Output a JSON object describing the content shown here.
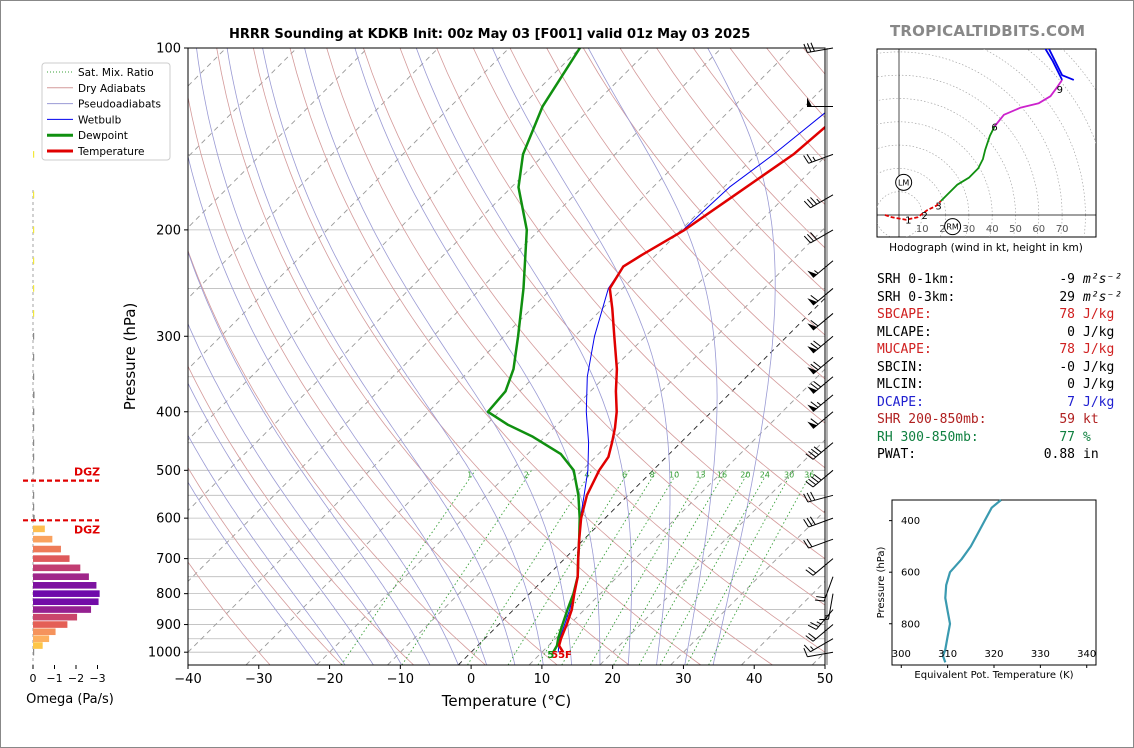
{
  "brand": "TROPICALTIDBITS.COM",
  "title": "HRRR Sounding at KDKB Init: 00z May 03 [F001] valid 01z May 03 2025",
  "colors": {
    "temperature": "#e00000",
    "dewpoint": "#109010",
    "wetbulb": "#0000ee",
    "dry_adiabat": "#d49a9a",
    "moist_adiabat": "#9a9ad4",
    "mixing_ratio": "#3aa03a",
    "isobar": "#bbbbbb",
    "dgz": "#e00000",
    "theta_e": "#3a9ab0",
    "red_text": "#d02020",
    "blue_text": "#2020d0",
    "brown_text": "#b02020",
    "green_text": "#108040"
  },
  "chart_data": [
    {
      "type": "line",
      "name": "skew-t",
      "xlabel": "Temperature (°C)",
      "ylabel": "Pressure (hPa)",
      "xlim": [
        -40,
        50
      ],
      "ylim": [
        1050,
        100
      ],
      "y_scale": "log",
      "x_ticks": [
        -40,
        -30,
        -20,
        -10,
        0,
        10,
        20,
        30,
        40,
        50
      ],
      "x_tick_labels": [
        "−40",
        "−30",
        "−20",
        "−10",
        "0",
        "10",
        "20",
        "30",
        "40",
        "50"
      ],
      "y_ticks": [
        100,
        200,
        300,
        400,
        500,
        600,
        700,
        800,
        900,
        1000
      ],
      "y_tick_labels": [
        "100",
        "200",
        "300",
        "400",
        "500",
        "600",
        "700",
        "800",
        "900",
        "1000"
      ],
      "grid": true,
      "legend_position": "top-left",
      "legend": [
        {
          "label": "Sat. Mix. Ratio",
          "color": "#3aa03a",
          "style": "dotted",
          "width": 1
        },
        {
          "label": "Dry Adiabats",
          "color": "#d49a9a",
          "style": "solid",
          "width": 1
        },
        {
          "label": "Pseudoadiabats",
          "color": "#9a9ad4",
          "style": "solid",
          "width": 1
        },
        {
          "label": "Wetbulb",
          "color": "#0000ee",
          "style": "solid",
          "width": 1
        },
        {
          "label": "Dewpoint",
          "color": "#109010",
          "style": "solid",
          "width": 3
        },
        {
          "label": "Temperature",
          "color": "#e00000",
          "style": "solid",
          "width": 3
        }
      ],
      "mixing_ratio_labels": [
        "1",
        "2",
        "4",
        "6",
        "8",
        "10",
        "13",
        "16",
        "20",
        "24",
        "30",
        "36"
      ],
      "surface_label": "55F",
      "surface_label_dewpoint": "5",
      "series": [
        {
          "name": "Temperature",
          "p": [
            1000,
            975,
            950,
            925,
            900,
            850,
            800,
            750,
            700,
            650,
            600,
            550,
            500,
            475,
            450,
            425,
            400,
            370,
            340,
            300,
            270,
            250,
            230,
            220,
            200,
            175,
            150,
            125,
            100
          ],
          "t": [
            13.0,
            11.5,
            10.8,
            10.2,
            9.6,
            8.2,
            6.3,
            4.4,
            1.9,
            -0.7,
            -3.4,
            -5.8,
            -7.6,
            -8.2,
            -9.7,
            -11.4,
            -13.4,
            -16.4,
            -19.4,
            -24.4,
            -28.6,
            -31.8,
            -33.0,
            -32.0,
            -29.5,
            -27.3,
            -24.8,
            -23.7,
            -22.9
          ]
        },
        {
          "name": "Dewpoint",
          "p": [
            1000,
            975,
            950,
            925,
            900,
            850,
            800,
            750,
            700,
            650,
            600,
            550,
            500,
            470,
            440,
            420,
            400,
            370,
            340,
            300,
            250,
            200,
            170,
            150,
            125,
            100
          ],
          "t": [
            11.6,
            11.2,
            10.4,
            9.7,
            9.0,
            7.6,
            6.2,
            4.4,
            1.9,
            -0.7,
            -3.6,
            -7.0,
            -11.2,
            -15.3,
            -21.7,
            -27.0,
            -31.6,
            -32.0,
            -34.0,
            -38.0,
            -44.0,
            -51.8,
            -59.0,
            -63.0,
            -67.0,
            -70.0
          ]
        },
        {
          "name": "Wetbulb",
          "p": [
            1000,
            950,
            900,
            850,
            800,
            750,
            700,
            650,
            600,
            550,
            500,
            450,
            400,
            350,
            300,
            250,
            230,
            200,
            170,
            150,
            125,
            100
          ],
          "t": [
            12.3,
            10.6,
            9.3,
            7.9,
            6.2,
            4.4,
            1.9,
            -0.7,
            -3.5,
            -6.2,
            -9.2,
            -13.0,
            -17.7,
            -22.5,
            -27.2,
            -32.0,
            -33.0,
            -29.7,
            -29.2,
            -27.6,
            -26.0,
            -24.9
          ]
        }
      ]
    },
    {
      "type": "bar",
      "name": "omega",
      "xlabel": "Omega (Pa/s)",
      "x_ticks": [
        0,
        -1,
        -2,
        -3
      ],
      "x_tick_labels": [
        "0",
        "−1",
        "−2",
        "−3"
      ],
      "dgz_label": "DGZ",
      "dgz_p": [
        520,
        605
      ],
      "p": [
        1000,
        975,
        950,
        925,
        900,
        875,
        850,
        825,
        800,
        775,
        750,
        725,
        700,
        675,
        650,
        625,
        600,
        575,
        550,
        500,
        475,
        450,
        425,
        400,
        375,
        350,
        325,
        300,
        275,
        250,
        225,
        200,
        175,
        150
      ],
      "values": [
        -0.03,
        -0.45,
        -0.75,
        -1.05,
        -1.6,
        -2.05,
        -2.7,
        -3.05,
        -3.1,
        -2.95,
        -2.6,
        -2.2,
        -1.7,
        -1.3,
        -0.9,
        -0.55,
        -0.08,
        -0.02,
        -0.01,
        -0.01,
        -0.01,
        -0.01,
        -0.02,
        -0.06,
        -0.07,
        -0.04,
        -0.02,
        -0.01,
        -0.03,
        -0.04,
        -0.03,
        -0.02,
        -0.02,
        -0.02
      ]
    },
    {
      "type": "line",
      "name": "hodograph",
      "xlabel": "Hodograph (wind in kt, height in km)",
      "x_tick_labels": [
        "10",
        "20",
        "30",
        "40",
        "50",
        "60",
        "70"
      ],
      "x_ticks": [
        10,
        20,
        30,
        40,
        50,
        60,
        70
      ],
      "storm_motion": [
        {
          "label": "LM",
          "u": 2,
          "v": 14
        },
        {
          "label": "RM",
          "u": 23,
          "v": -5
        }
      ],
      "height_labels": [
        {
          "label": "1",
          "u": 4,
          "v": -2
        },
        {
          "label": "2",
          "u": 11,
          "v": 0
        },
        {
          "label": "3",
          "u": 17,
          "v": 4
        },
        {
          "label": "6",
          "u": 41,
          "v": 38
        },
        {
          "label": "9",
          "u": 69,
          "v": 54
        }
      ],
      "segments": [
        {
          "color": "#e00000",
          "u": [
            -6,
            -3,
            3,
            8,
            12,
            16,
            18
          ],
          "v": [
            0,
            -1,
            -2,
            -1,
            2,
            4,
            6
          ]
        },
        {
          "color": "#109010",
          "u": [
            18,
            21,
            25,
            30,
            34,
            36,
            37,
            39,
            41
          ],
          "v": [
            6,
            9,
            13,
            16,
            20,
            24,
            28,
            34,
            38
          ]
        },
        {
          "color": "#cc22cc",
          "u": [
            41,
            45,
            52,
            60,
            65,
            68,
            70
          ],
          "v": [
            38,
            43,
            46,
            48,
            51,
            55,
            58
          ]
        },
        {
          "color": "#0000ee",
          "u": [
            70,
            66,
            60,
            54
          ],
          "v": [
            58,
            66,
            76,
            93
          ]
        }
      ],
      "blue_tail": {
        "u": [
          54,
          62,
          70,
          75
        ],
        "v": [
          93,
          76,
          60,
          58
        ]
      }
    },
    {
      "type": "line",
      "name": "theta-e",
      "xlabel": "Equivalent Pot. Temperature (K)",
      "ylabel": "Pressure (hPa)",
      "xlim": [
        298,
        342
      ],
      "ylim": [
        960,
        320
      ],
      "x_ticks": [
        300,
        310,
        320,
        330,
        340
      ],
      "x_tick_labels": [
        "300",
        "310",
        "320",
        "330",
        "340"
      ],
      "y_ticks": [
        400,
        600,
        800
      ],
      "y_tick_labels": [
        "400",
        "600",
        "800"
      ],
      "theta_e": [
        309.5,
        309.0,
        309.5,
        310.0,
        310.5,
        310.0,
        309.5,
        309.7,
        310.5,
        313.0,
        315.0,
        316.5,
        318.0,
        319.5,
        321.5
      ],
      "p": [
        950,
        925,
        900,
        850,
        800,
        750,
        700,
        650,
        600,
        550,
        500,
        450,
        400,
        350,
        320
      ]
    }
  ],
  "wind_barbs": [
    {
      "p": 1000,
      "dir": 260,
      "spd": 10
    },
    {
      "p": 950,
      "dir": 240,
      "spd": 15
    },
    {
      "p": 900,
      "dir": 230,
      "spd": 20
    },
    {
      "p": 850,
      "dir": 220,
      "spd": 25
    },
    {
      "p": 800,
      "dir": 190,
      "spd": 15
    },
    {
      "p": 750,
      "dir": 200,
      "spd": 20
    },
    {
      "p": 700,
      "dir": 230,
      "spd": 20
    },
    {
      "p": 650,
      "dir": 250,
      "spd": 20
    },
    {
      "p": 600,
      "dir": 250,
      "spd": 30
    },
    {
      "p": 550,
      "dir": 255,
      "spd": 30
    },
    {
      "p": 500,
      "dir": 230,
      "spd": 40
    },
    {
      "p": 450,
      "dir": 230,
      "spd": 40
    },
    {
      "p": 400,
      "dir": 230,
      "spd": 60
    },
    {
      "p": 375,
      "dir": 230,
      "spd": 65
    },
    {
      "p": 350,
      "dir": 230,
      "spd": 70
    },
    {
      "p": 325,
      "dir": 230,
      "spd": 70
    },
    {
      "p": 300,
      "dir": 230,
      "spd": 70
    },
    {
      "p": 275,
      "dir": 230,
      "spd": 60
    },
    {
      "p": 250,
      "dir": 230,
      "spd": 60
    },
    {
      "p": 225,
      "dir": 230,
      "spd": 55
    },
    {
      "p": 200,
      "dir": 240,
      "spd": 30
    },
    {
      "p": 175,
      "dir": 240,
      "spd": 35
    },
    {
      "p": 150,
      "dir": 250,
      "spd": 25
    },
    {
      "p": 125,
      "dir": 270,
      "spd": 50
    },
    {
      "p": 100,
      "dir": 260,
      "spd": 30
    }
  ],
  "params": [
    {
      "label": "SRH 0-1km:",
      "value": "-9",
      "unit": "m²s⁻²",
      "color": "#000000"
    },
    {
      "label": "SRH 0-3km:",
      "value": "29",
      "unit": "m²s⁻²",
      "color": "#000000"
    },
    {
      "label": "SBCAPE:",
      "value": "78",
      "unit": "J/kg",
      "color": "#d02020"
    },
    {
      "label": "MLCAPE:",
      "value": "0",
      "unit": "J/kg",
      "color": "#000000"
    },
    {
      "label": "MUCAPE:",
      "value": "78",
      "unit": "J/kg",
      "color": "#d02020"
    },
    {
      "label": "SBCIN:",
      "value": "-0",
      "unit": "J/kg",
      "color": "#000000"
    },
    {
      "label": "MLCIN:",
      "value": "0",
      "unit": "J/kg",
      "color": "#000000"
    },
    {
      "label": "DCAPE:",
      "value": "7",
      "unit": "J/kg",
      "color": "#2020d0"
    },
    {
      "label": "SHR 200-850mb:",
      "value": "59",
      "unit": "kt",
      "color": "#b02020"
    },
    {
      "label": "RH 300-850mb:",
      "value": "77",
      "unit": "%",
      "color": "#108040"
    },
    {
      "label": "PWAT:",
      "value": "0.88",
      "unit": "in",
      "color": "#000000"
    }
  ]
}
